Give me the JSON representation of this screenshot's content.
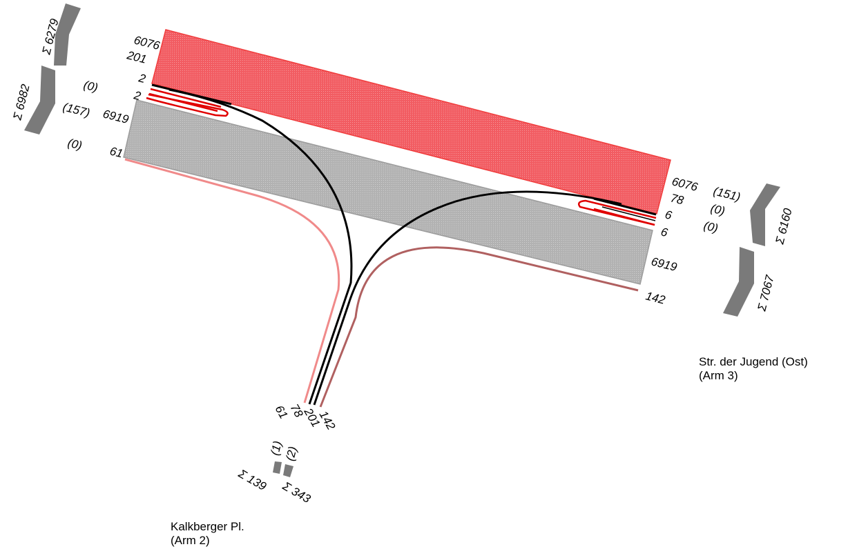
{
  "colors": {
    "main_flow_red": "#f05a5f",
    "main_flow_red_stroke": "#f03c3c",
    "main_flow_grey": "#b4b4b4",
    "main_flow_grey_stroke": "#9c9c9c",
    "turn_line_black": "#000000",
    "turn_line_red": "#e00000",
    "light_red": "#f08a8a",
    "brown_red": "#b06060",
    "sum_arrow": "#7a7a7a"
  },
  "arms": {
    "west": {
      "flow_labels": [
        "6076",
        "201",
        "2",
        "2",
        "6919",
        "61"
      ],
      "paren_labels": [
        "(0)",
        "(157)",
        "(0)"
      ],
      "sum_out": "Σ 6279",
      "sum_in": "Σ 6982"
    },
    "east": {
      "name": "Str. der Jugend (Ost)",
      "arm": "(Arm 3)",
      "flow_labels": [
        "6076",
        "78",
        "6",
        "6",
        "6919",
        "142"
      ],
      "paren_labels": [
        "(151)",
        "(0)",
        "(0)"
      ],
      "sum_out": "Σ 6160",
      "sum_in": "Σ 7067"
    },
    "south": {
      "name": "Kalkberger Pl.",
      "arm": "(Arm 2)",
      "flow_labels": [
        "61",
        "78",
        "201",
        "142"
      ],
      "paren_labels": [
        "(1)",
        "(2)"
      ],
      "sum_out": "Σ 139",
      "sum_in": "Σ 343"
    }
  }
}
